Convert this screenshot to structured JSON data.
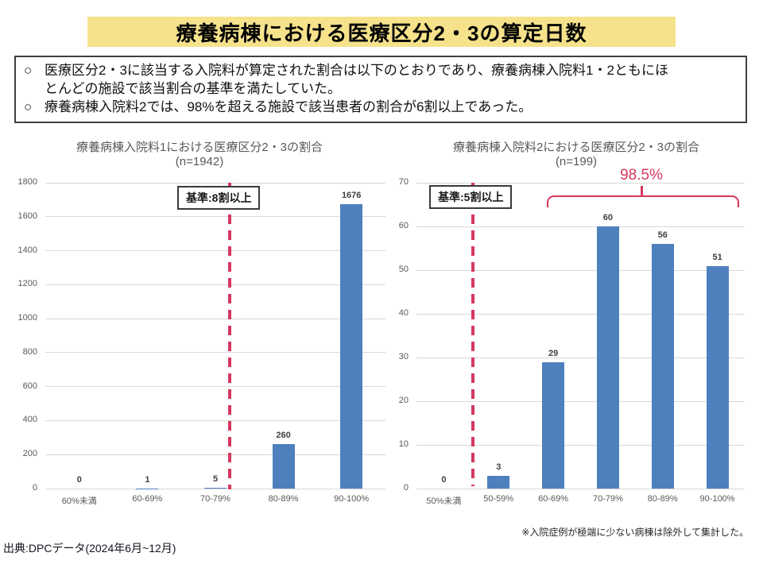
{
  "page": {
    "title": "療養病棟における医療区分2・3の算定日数",
    "footnote": "※入院症例が極端に少ない病棟は除外して集計した。",
    "source": "出典:DPCデータ(2024年6月~12月)"
  },
  "summary_box": {
    "bullet_marker": "○",
    "bullets": [
      "医療区分2・3に該当する入院料が算定された割合は以下のとおりであり、療養病棟入院料1・2ともにほとんどの施設で該当割合の基準を満たしていた。",
      "療養病棟入院料2では、98%を超える施設で該当患者の割合が6割以上であった。"
    ]
  },
  "colors": {
    "bar_blue": "#4E80BD",
    "accent_red": "#D5385E",
    "title_bg": "#F5E28B",
    "gridline": "#D9D9D9",
    "axis_text": "#595959"
  },
  "chart_data": [
    {
      "type": "bar",
      "title": "療養病棟入院料1における医療区分2・3の割合",
      "subtitle": "(n=1942)",
      "categories": [
        "60%未満",
        "60-69%",
        "70-79%",
        "80-89%",
        "90-100%"
      ],
      "values": [
        0,
        1,
        5,
        260,
        1676
      ],
      "ylim": [
        0,
        1800
      ],
      "ytick_step": 200,
      "grid": true,
      "legend": "none",
      "threshold_label": "基準:8割以上",
      "threshold_note": "red dashed line at 80% boundary"
    },
    {
      "type": "bar",
      "title": "療養病棟入院料2における医療区分2・3の割合",
      "subtitle": "(n=199)",
      "categories": [
        "50%未満",
        "50-59%",
        "60-69%",
        "70-79%",
        "80-89%",
        "90-100%"
      ],
      "values": [
        0,
        3,
        29,
        60,
        56,
        51
      ],
      "ylim": [
        0,
        70
      ],
      "ytick_step": 10,
      "grid": true,
      "legend": "none",
      "threshold_label": "基準:5割以上",
      "threshold_note": "red dashed line at 50% boundary",
      "bracket": {
        "label": "98.5%",
        "from_index": 2,
        "to_index": 5
      }
    }
  ]
}
